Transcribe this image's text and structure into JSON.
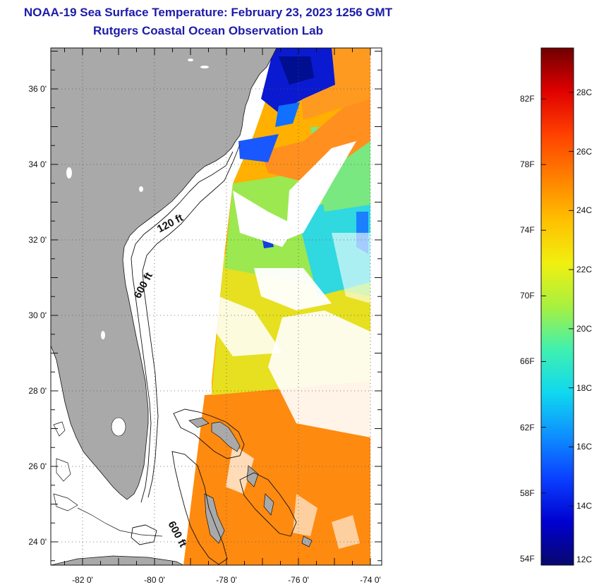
{
  "title_line1": "NOAA-19 Sea Surface Temperature:  February 23, 2023 1256 GMT",
  "title_line2": "Rutgers Coastal Ocean Observation Lab",
  "lat_ticks": [
    "36 0'",
    "34 0'",
    "32 0'",
    "30 0'",
    "28 0'",
    "26 0'",
    "24 0'"
  ],
  "lon_ticks": [
    "-82 0'",
    "-80 0'",
    "-78 0'",
    "-76 0'",
    "-74 0'"
  ],
  "contours": {
    "shallow": "120 ft",
    "deep": "600 ft",
    "bahamas": "600 ft"
  },
  "colorbar": {
    "fahrenheit": [
      "82F",
      "78F",
      "74F",
      "70F",
      "66F",
      "62F",
      "58F",
      "54F"
    ],
    "celsius": [
      "28C",
      "26C",
      "24C",
      "22C",
      "20C",
      "18C",
      "16C",
      "14C",
      "12C"
    ],
    "min_c": 12,
    "max_c": 29.5,
    "colors": [
      "#08086e",
      "#0000d0",
      "#0a3fff",
      "#0e8fff",
      "#10d8f0",
      "#40f0b0",
      "#a8f040",
      "#f0f010",
      "#ffc000",
      "#ff8000",
      "#ff4000",
      "#e00000",
      "#700000"
    ]
  },
  "colors": {
    "land": "#a9a9a9",
    "ocean_missing": "#ffffff",
    "title": "#1c1ca8"
  }
}
